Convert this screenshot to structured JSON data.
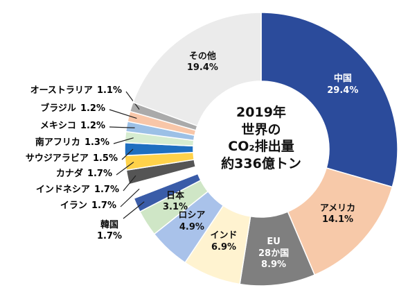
{
  "chart_data": {
    "type": "donut",
    "title": "2019年\n世界の\nCO₂排出量\n約336億トン",
    "categories": [
      "中国",
      "アメリカ",
      "EU\n28か国",
      "インド",
      "ロシア",
      "日本",
      "韓国",
      "イラン",
      "インドネシア",
      "カナダ",
      "サウジアラビア",
      "南アフリカ",
      "メキシコ",
      "ブラジル",
      "オーストラリア",
      "その他"
    ],
    "values": [
      29.4,
      14.1,
      8.9,
      6.9,
      4.9,
      3.1,
      1.7,
      1.7,
      1.7,
      1.7,
      1.5,
      1.3,
      1.2,
      1.2,
      1.1,
      19.4
    ],
    "value_labels": [
      "29.4%",
      "14.1%",
      "8.9%",
      "6.9%",
      "4.9%",
      "3.1%",
      "1.7%",
      "1.7%",
      "1.7%",
      "1.7%",
      "1.5%",
      "1.3%",
      "1.2%",
      "1.2%",
      "1.1%",
      "19.4%"
    ],
    "colors": [
      "#2b4b9b",
      "#f7c9a9",
      "#7f7f7f",
      "#fff3d0",
      "#a9c2ea",
      "#cfe6c6",
      "#3a5ca8",
      "#ffffff",
      "#555555",
      "#ffd24a",
      "#1f6fc0",
      "#d6ecd0",
      "#9cc0e6",
      "#f8c6a8",
      "#aaaaaa",
      "#ebebeb"
    ]
  }
}
